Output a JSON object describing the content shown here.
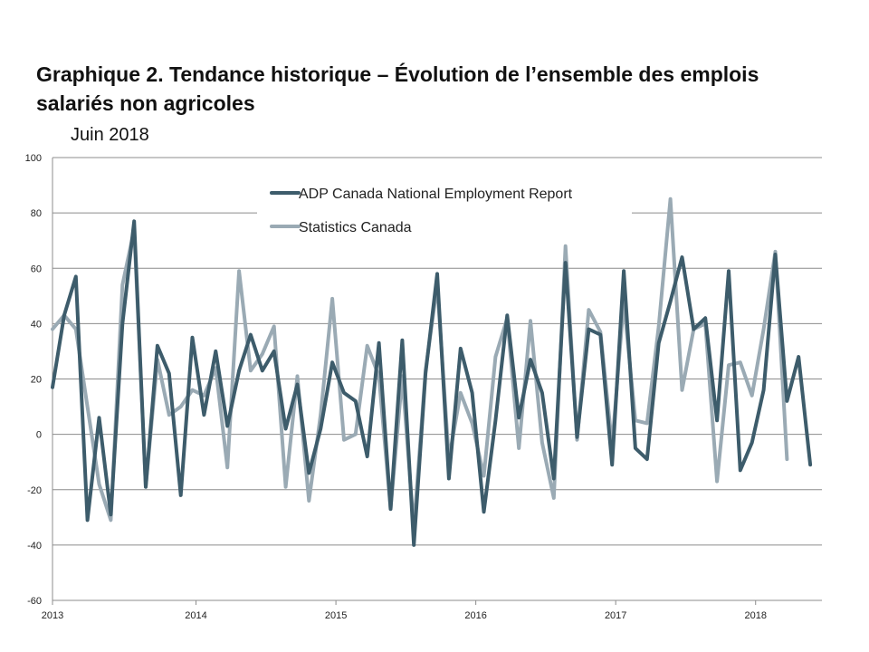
{
  "title": "Graphique 2. Tendance historique – Évolution de l’ensemble des emplois salariés non agricoles",
  "subtitle": "Juin 2018",
  "chart_data": {
    "type": "line",
    "ylim": [
      -60,
      100
    ],
    "y_ticks": [
      "-60",
      "-40",
      "-20",
      "0",
      "20",
      "40",
      "60",
      "80",
      "100"
    ],
    "y_tick_values": [
      -60,
      -40,
      -20,
      0,
      20,
      40,
      60,
      80,
      100
    ],
    "x_start": "2013-01",
    "x_ticks": [
      "2013",
      "2014",
      "2015",
      "2016",
      "2017",
      "2018"
    ],
    "grid": "horizontal",
    "legend_position": "top-center",
    "series": [
      {
        "name": "ADP Canada National Employment Report",
        "color": "#3d5c6b",
        "values": [
          17,
          43,
          57,
          -31,
          6,
          -29,
          40,
          77,
          -19,
          32,
          22,
          -22,
          35,
          7,
          30,
          3,
          23,
          36,
          23,
          30,
          2,
          18,
          -14,
          2,
          26,
          15,
          12,
          -8,
          33,
          -27,
          34,
          -40,
          22,
          58,
          -16,
          31,
          15,
          -28,
          5,
          43,
          6,
          27,
          15,
          -16,
          62,
          -1,
          38,
          36,
          -11,
          59,
          -5,
          -9,
          33,
          48,
          64,
          38,
          42,
          5,
          59,
          -13,
          -3,
          16,
          65,
          12,
          28,
          -11
        ],
        "note": "2013-01 to 2018-06 monthly"
      },
      {
        "name": "Statistics Canada",
        "color": "#9aaab4",
        "values": [
          38,
          43,
          38,
          10,
          -18,
          -31,
          54,
          74,
          -19,
          27,
          7,
          10,
          16,
          14,
          24,
          -12,
          59,
          23,
          29,
          39,
          -19,
          21,
          -24,
          7,
          49,
          -2,
          0,
          32,
          21,
          -27,
          21,
          -34,
          23,
          54,
          -9,
          15,
          4,
          -15,
          28,
          42,
          -5,
          41,
          -3,
          -23,
          68,
          -2,
          45,
          37,
          -4,
          48,
          5,
          4,
          39,
          85,
          16,
          38,
          40,
          -17,
          25,
          26,
          14,
          38,
          66,
          -9
        ]
      }
    ]
  }
}
